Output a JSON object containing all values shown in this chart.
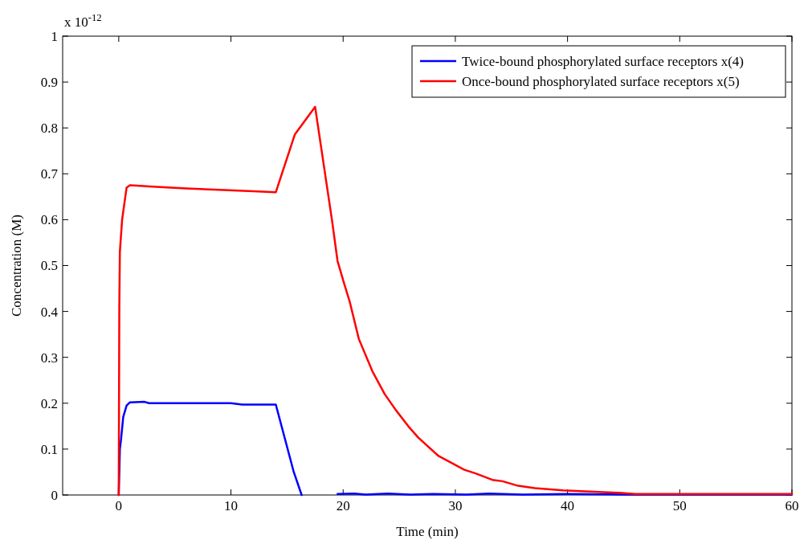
{
  "chart_data": {
    "type": "line",
    "xlabel": "Time (min)",
    "ylabel": "Concentration (M)",
    "annotations": [
      "x 10$^{-12}$"
    ],
    "xlim": [
      -5,
      60
    ],
    "xticks": [
      0,
      10,
      20,
      30,
      40,
      50,
      60
    ],
    "ylim": [
      0,
      1
    ],
    "yticks": [
      0,
      0.1,
      0.2,
      0.3,
      0.4,
      0.5,
      0.6,
      0.7,
      0.8,
      0.9,
      1
    ],
    "grid": false,
    "legend": "top right",
    "line_style": "solid",
    "marker": "none",
    "series": [
      {
        "name": "Twice-bound phosphorylated surface receptors x(4)",
        "color": "#0000ff",
        "x": [
          0,
          0.1,
          0.2,
          0.4,
          0.7,
          1,
          2.3,
          2.7,
          10,
          11,
          14,
          15.6,
          16.3,
          17,
          19.5,
          21,
          22,
          24,
          26,
          28,
          31,
          33,
          36,
          40,
          45,
          50,
          55,
          60
        ],
        "values": [
          0,
          0.1,
          0.12,
          0.17,
          0.195,
          0.202,
          0.203,
          0.2,
          0.2,
          0.197,
          0.197,
          0.05,
          0,
          null,
          0.002,
          0.003,
          0.001,
          0.003,
          0.001,
          0.002,
          0.001,
          0.003,
          0.001,
          0.002,
          0.001,
          0.001,
          0.001,
          0.001
        ]
      },
      {
        "name": "Once-bound phosphorylated surface receptors x(5)",
        "color": "#ff0000",
        "x": [
          0,
          0.05,
          0.1,
          0.3,
          0.7,
          1,
          3,
          6,
          9,
          12,
          14,
          15.7,
          17.5,
          19,
          19.5,
          20.1,
          20.6,
          21.4,
          22.6,
          23.7,
          24.7,
          25.8,
          26.7,
          28.5,
          30.8,
          31.8,
          33.3,
          34.2,
          35.6,
          37.1,
          39.6,
          43.2,
          44.6,
          46,
          60
        ],
        "values": [
          0,
          0.41,
          0.53,
          0.6,
          0.67,
          0.675,
          0.672,
          0.668,
          0.665,
          0.662,
          0.66,
          0.786,
          0.846,
          0.6,
          0.51,
          0.46,
          0.42,
          0.34,
          0.27,
          0.22,
          0.185,
          0.15,
          0.125,
          0.085,
          0.055,
          0.047,
          0.033,
          0.03,
          0.02,
          0.015,
          0.01,
          0.006,
          0.005,
          0.002,
          0.002
        ]
      }
    ]
  }
}
